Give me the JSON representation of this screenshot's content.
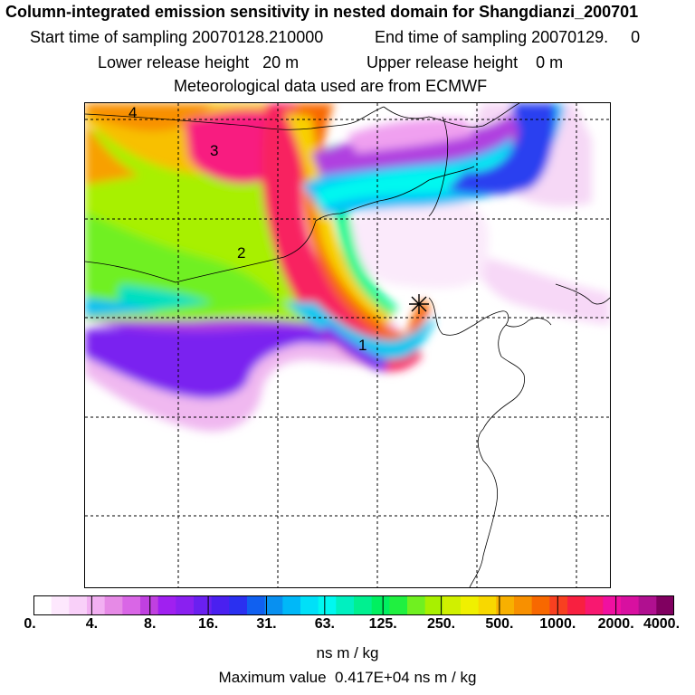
{
  "header": {
    "title": "Column-integrated emission sensitivity in nested domain for Shangdianzi_200701",
    "start_sampling": "Start time of sampling 20070128.210000",
    "end_sampling": "End time of sampling 20070129.     0",
    "lower_release": "Lower release height   20 m",
    "upper_release": "Upper release height    0 m",
    "met_data": "Meteorological data used are from ECMWF"
  },
  "map": {
    "contour_labels": [
      "4",
      "3",
      "2",
      "1"
    ],
    "receptor_symbol": "receptor-star"
  },
  "colorbar": {
    "tick_labels": [
      "0.",
      "4.",
      "8.",
      "16.",
      "31.",
      "63.",
      "125.",
      "250.",
      "500.",
      "1000.",
      "2000.",
      "4000."
    ],
    "colors": [
      "#ffffff",
      "#fde8fd",
      "#f9d0f9",
      "#f2b0f2",
      "#e68ae6",
      "#d966e6",
      "#c040e0",
      "#a020f0",
      "#8a20f0",
      "#6a20f0",
      "#4a20f0",
      "#2a30f0",
      "#1060f0",
      "#0890f0",
      "#00b8f8",
      "#00e0f8",
      "#00f8f0",
      "#00f0c0",
      "#00f090",
      "#00f060",
      "#20f040",
      "#70f020",
      "#a8f000",
      "#d0f000",
      "#f0f000",
      "#f8d800",
      "#f8b000",
      "#f89000",
      "#f86800",
      "#f84020",
      "#f82040",
      "#f81870",
      "#f010a0",
      "#d810a0",
      "#b01090",
      "#800060"
    ],
    "unit": "ns m / kg"
  },
  "max_value": "Maximum value  0.417E+04 ns m / kg"
}
